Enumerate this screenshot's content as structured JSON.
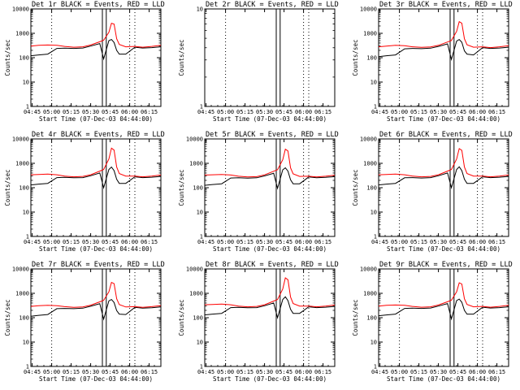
{
  "colors": {
    "events": "#000000",
    "lld": "#ff0000",
    "background": "#ffffff"
  },
  "common": {
    "xlabel": "Start Time (07-Dec-03 04:44:00)",
    "ylabel": "Counts/sec",
    "x_tick_labels": [
      "04:45",
      "05:00",
      "05:15",
      "05:30",
      "05:45",
      "06:00",
      "06:15"
    ],
    "y_tick_labels": [
      "1",
      "10",
      "100",
      "1000",
      "10000"
    ]
  },
  "chart_data": [
    {
      "type": "line",
      "title": "Det 1r BLACK = Events, RED = LLD",
      "xlabel": "Start Time (07-Dec-03 04:44:00)",
      "ylabel": "Counts/sec",
      "y_scale": "log",
      "ylim": [
        1,
        10000
      ],
      "x_range": [
        "04:44",
        "06:24"
      ],
      "x": [
        "04:44",
        "04:50",
        "04:57",
        "05:04",
        "05:10",
        "05:17",
        "05:24",
        "05:30",
        "05:37",
        "05:40",
        "05:44",
        "05:46",
        "05:48",
        "05:50",
        "05:52",
        "05:57",
        "06:04",
        "06:10",
        "06:17",
        "06:24"
      ],
      "series": [
        {
          "name": "Events",
          "values": [
            120,
            130,
            140,
            240,
            245,
            240,
            250,
            300,
            380,
            90,
            500,
            560,
            420,
            200,
            140,
            140,
            270,
            250,
            260,
            280
          ]
        },
        {
          "name": "LLD",
          "values": [
            300,
            320,
            330,
            320,
            290,
            270,
            280,
            330,
            450,
            520,
            1100,
            2600,
            2400,
            600,
            350,
            280,
            290,
            270,
            290,
            320
          ]
        }
      ]
    },
    {
      "type": "line",
      "title": "Det 2r BLACK = Events, RED = LLD",
      "xlabel": "Start Time (07-Dec-03 04:44:00)",
      "ylabel": "Counts/sec",
      "y_scale": "log",
      "ylim": [
        1,
        10
      ],
      "x_range": [
        "04:44",
        "06:24"
      ],
      "x": [],
      "series": []
    },
    {
      "type": "line",
      "title": "Det 3r BLACK = Events, RED = LLD",
      "xlabel": "Start Time (07-Dec-03 04:44:00)",
      "ylabel": "Counts/sec",
      "y_scale": "log",
      "ylim": [
        1,
        10000
      ],
      "x_range": [
        "04:44",
        "06:24"
      ],
      "x": [
        "04:44",
        "04:50",
        "04:57",
        "05:04",
        "05:10",
        "05:17",
        "05:24",
        "05:30",
        "05:37",
        "05:40",
        "05:44",
        "05:46",
        "05:48",
        "05:50",
        "05:52",
        "05:57",
        "06:04",
        "06:10",
        "06:17",
        "06:24"
      ],
      "series": [
        {
          "name": "Events",
          "values": [
            110,
            120,
            130,
            230,
            240,
            235,
            245,
            290,
            370,
            85,
            480,
            560,
            430,
            190,
            140,
            130,
            260,
            240,
            250,
            270
          ]
        },
        {
          "name": "LLD",
          "values": [
            280,
            300,
            320,
            310,
            280,
            265,
            275,
            320,
            440,
            510,
            1200,
            3000,
            2600,
            600,
            340,
            270,
            280,
            260,
            280,
            310
          ]
        }
      ]
    },
    {
      "type": "line",
      "title": "Det 4r BLACK = Events, RED = LLD",
      "xlabel": "Start Time (07-Dec-03 04:44:00)",
      "ylabel": "Counts/sec",
      "y_scale": "log",
      "ylim": [
        1,
        10000
      ],
      "x_range": [
        "04:44",
        "06:24"
      ],
      "x": [
        "04:44",
        "04:50",
        "04:57",
        "05:04",
        "05:10",
        "05:17",
        "05:24",
        "05:30",
        "05:37",
        "05:40",
        "05:44",
        "05:46",
        "05:48",
        "05:50",
        "05:52",
        "05:57",
        "06:04",
        "06:10",
        "06:17",
        "06:24"
      ],
      "series": [
        {
          "name": "Events",
          "values": [
            130,
            140,
            150,
            260,
            265,
            255,
            260,
            310,
            400,
            100,
            560,
            700,
            500,
            220,
            150,
            150,
            280,
            260,
            270,
            290
          ]
        },
        {
          "name": "LLD",
          "values": [
            340,
            350,
            360,
            340,
            300,
            280,
            290,
            340,
            480,
            560,
            1500,
            4200,
            3500,
            700,
            380,
            300,
            300,
            280,
            300,
            330
          ]
        }
      ]
    },
    {
      "type": "line",
      "title": "Det 5r BLACK = Events, RED = LLD",
      "xlabel": "Start Time (07-Dec-03 04:44:00)",
      "ylabel": "Counts/sec",
      "y_scale": "log",
      "ylim": [
        1,
        10000
      ],
      "x_range": [
        "04:44",
        "06:24"
      ],
      "x": [
        "04:44",
        "04:50",
        "04:57",
        "05:04",
        "05:10",
        "05:17",
        "05:24",
        "05:30",
        "05:37",
        "05:40",
        "05:44",
        "05:46",
        "05:48",
        "05:50",
        "05:52",
        "05:57",
        "06:04",
        "06:10",
        "06:17",
        "06:24"
      ],
      "series": [
        {
          "name": "Events",
          "values": [
            125,
            135,
            145,
            250,
            255,
            245,
            255,
            305,
            390,
            95,
            540,
            650,
            480,
            210,
            145,
            145,
            275,
            255,
            265,
            285
          ]
        },
        {
          "name": "LLD",
          "values": [
            330,
            340,
            350,
            330,
            295,
            275,
            285,
            335,
            470,
            550,
            1400,
            3800,
            3200,
            650,
            370,
            290,
            295,
            275,
            295,
            325
          ]
        }
      ]
    },
    {
      "type": "line",
      "title": "Det 6r BLACK = Events, RED = LLD",
      "xlabel": "Start Time (07-Dec-03 04:44:00)",
      "ylabel": "Counts/sec",
      "y_scale": "log",
      "ylim": [
        1,
        10000
      ],
      "x_range": [
        "04:44",
        "06:24"
      ],
      "x": [
        "04:44",
        "04:50",
        "04:57",
        "05:04",
        "05:10",
        "05:17",
        "05:24",
        "05:30",
        "05:37",
        "05:40",
        "05:44",
        "05:46",
        "05:48",
        "05:50",
        "05:52",
        "05:57",
        "06:04",
        "06:10",
        "06:17",
        "06:24"
      ],
      "series": [
        {
          "name": "Events",
          "values": [
            130,
            140,
            150,
            255,
            260,
            250,
            260,
            310,
            400,
            100,
            560,
            720,
            500,
            220,
            150,
            150,
            280,
            260,
            270,
            290
          ]
        },
        {
          "name": "LLD",
          "values": [
            340,
            350,
            360,
            340,
            300,
            280,
            290,
            340,
            480,
            560,
            1500,
            4000,
            3400,
            700,
            380,
            300,
            300,
            280,
            300,
            330
          ]
        }
      ]
    },
    {
      "type": "line",
      "title": "Det 7r BLACK = Events, RED = LLD",
      "xlabel": "Start Time (07-Dec-03 04:44:00)",
      "ylabel": "Counts/sec",
      "y_scale": "log",
      "ylim": [
        1,
        10000
      ],
      "x_range": [
        "04:44",
        "06:24"
      ],
      "x": [
        "04:44",
        "04:50",
        "04:57",
        "05:04",
        "05:10",
        "05:17",
        "05:24",
        "05:30",
        "05:37",
        "05:40",
        "05:44",
        "05:46",
        "05:48",
        "05:50",
        "05:52",
        "05:57",
        "06:04",
        "06:10",
        "06:17",
        "06:24"
      ],
      "series": [
        {
          "name": "Events",
          "values": [
            115,
            125,
            135,
            235,
            240,
            235,
            245,
            295,
            375,
            88,
            490,
            560,
            420,
            195,
            140,
            135,
            265,
            245,
            255,
            275
          ]
        },
        {
          "name": "LLD",
          "values": [
            290,
            310,
            320,
            310,
            285,
            268,
            278,
            325,
            445,
            515,
            1150,
            2800,
            2500,
            600,
            345,
            275,
            285,
            265,
            285,
            315
          ]
        }
      ]
    },
    {
      "type": "line",
      "title": "Det 8r BLACK = Events, RED = LLD",
      "xlabel": "Start Time (07-Dec-03 04:44:00)",
      "ylabel": "Counts/sec",
      "y_scale": "log",
      "ylim": [
        1,
        10000
      ],
      "x_range": [
        "04:44",
        "06:24"
      ],
      "x": [
        "04:44",
        "04:50",
        "04:57",
        "05:04",
        "05:10",
        "05:17",
        "05:24",
        "05:30",
        "05:37",
        "05:40",
        "05:44",
        "05:46",
        "05:48",
        "05:50",
        "05:52",
        "05:57",
        "06:04",
        "06:10",
        "06:17",
        "06:24"
      ],
      "series": [
        {
          "name": "Events",
          "values": [
            130,
            140,
            150,
            260,
            265,
            255,
            260,
            310,
            400,
            100,
            560,
            720,
            500,
            220,
            150,
            150,
            280,
            260,
            270,
            290
          ]
        },
        {
          "name": "LLD",
          "values": [
            340,
            350,
            360,
            340,
            300,
            280,
            290,
            340,
            480,
            560,
            1500,
            4300,
            3600,
            700,
            380,
            300,
            300,
            280,
            300,
            330
          ]
        }
      ]
    },
    {
      "type": "line",
      "title": "Det 9r BLACK = Events, RED = LLD",
      "xlabel": "Start Time (07-Dec-03 04:44:00)",
      "ylabel": "Counts/sec",
      "y_scale": "log",
      "ylim": [
        1,
        10000
      ],
      "x_range": [
        "04:44",
        "06:24"
      ],
      "x": [
        "04:44",
        "04:50",
        "04:57",
        "05:04",
        "05:10",
        "05:17",
        "05:24",
        "05:30",
        "05:37",
        "05:40",
        "05:44",
        "05:46",
        "05:48",
        "05:50",
        "05:52",
        "05:57",
        "06:04",
        "06:10",
        "06:17",
        "06:24"
      ],
      "series": [
        {
          "name": "Events",
          "values": [
            120,
            130,
            140,
            240,
            245,
            240,
            250,
            300,
            380,
            90,
            500,
            580,
            430,
            200,
            140,
            140,
            270,
            250,
            260,
            280
          ]
        },
        {
          "name": "LLD",
          "values": [
            300,
            320,
            330,
            320,
            290,
            270,
            280,
            330,
            450,
            520,
            1150,
            2700,
            2400,
            600,
            350,
            280,
            290,
            270,
            290,
            320
          ]
        }
      ]
    }
  ]
}
